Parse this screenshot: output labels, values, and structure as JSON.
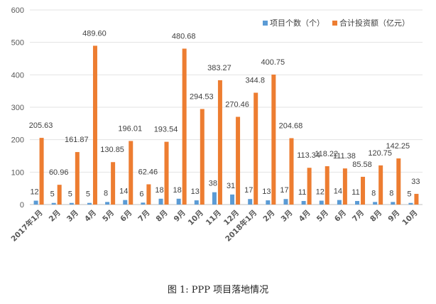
{
  "chart_data": {
    "type": "bar",
    "categories": [
      "2017年1月",
      "2月",
      "3月",
      "4月",
      "5月",
      "6月",
      "7月",
      "8月",
      "9月",
      "10月",
      "11月",
      "12月",
      "2018年1月",
      "2月",
      "3月",
      "4月",
      "5月",
      "6月",
      "7月",
      "8月",
      "9月",
      "10月"
    ],
    "series": [
      {
        "name": "项目个数（个）",
        "color": "#5B9BD5",
        "values": [
          12,
          5,
          5,
          5,
          8,
          14,
          6,
          18,
          18,
          13,
          38,
          31,
          17,
          13,
          17,
          11,
          12,
          14,
          11,
          8,
          8,
          5
        ],
        "labels": [
          "12",
          "5",
          "5",
          "5",
          "8",
          "14",
          "6",
          "18",
          "18",
          "13",
          "38",
          "31",
          "17",
          "13",
          "17",
          "11",
          "12",
          "14",
          "11",
          "8",
          "8",
          "5"
        ]
      },
      {
        "name": "合计投资额（亿元）",
        "color": "#ED7D31",
        "values": [
          205.63,
          60.96,
          161.87,
          489.6,
          130.85,
          196.01,
          62.46,
          193.54,
          480.68,
          294.53,
          383.27,
          270.46,
          344.8,
          400.75,
          204.68,
          113.34,
          118.22,
          111.38,
          85.58,
          120.75,
          142.25,
          33
        ],
        "labels": [
          "205.63",
          "60.96",
          "161.87",
          "489.60",
          "130.85",
          "196.01",
          "62.46",
          "193.54",
          "480.68",
          "294.53",
          "383.27",
          "270.46",
          "344.8",
          "400.75",
          "204.68",
          "113.34",
          "118.22",
          "111.38",
          "85.58",
          "120.75",
          "142.25",
          "33"
        ]
      }
    ],
    "ylim": [
      0,
      600
    ],
    "yticks": [
      "0",
      "100",
      "200",
      "300",
      "400",
      "500",
      "600"
    ],
    "grid": true,
    "legend": "top-right"
  },
  "caption": "图 1:  PPP 项目落地情况"
}
